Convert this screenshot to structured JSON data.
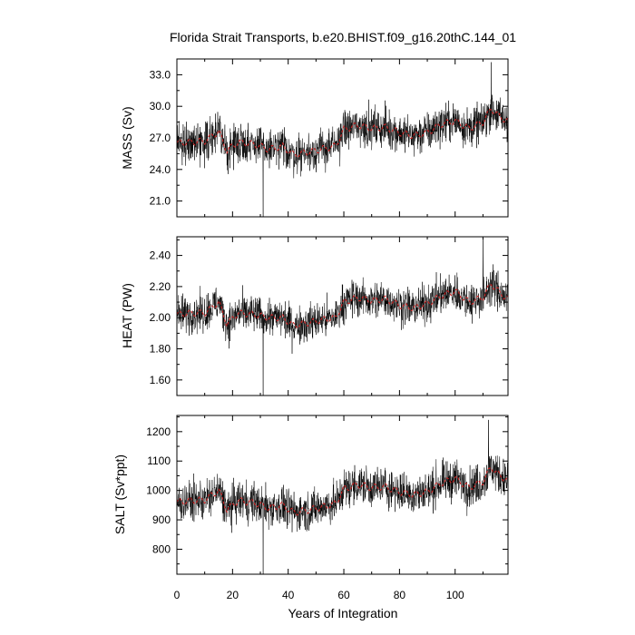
{
  "title": "Florida Strait Transports, b.e20.BHIST.f09_g16.20thC.144_01",
  "colors": {
    "monthly": "#000000",
    "smoothed": "#cc2222"
  },
  "chart_data": [
    {
      "type": "line",
      "ylabel": "MASS (Sv)",
      "xlim": [
        0,
        119
      ],
      "ylim": [
        19.5,
        34.5
      ],
      "yticks": [
        21.0,
        24.0,
        27.0,
        30.0,
        33.0
      ],
      "ytick_labels": [
        "21.0",
        "24.0",
        "27.0",
        "30.0",
        "33.0"
      ],
      "x_years": [
        0,
        5,
        10,
        15,
        18,
        22,
        28,
        33,
        38,
        42,
        48,
        53,
        57,
        60,
        65,
        70,
        75,
        80,
        85,
        90,
        95,
        100,
        105,
        110,
        113,
        116,
        119
      ],
      "smoothed": [
        26.5,
        26.6,
        26.7,
        27.6,
        25.8,
        26.6,
        26.4,
        25.9,
        26.2,
        25.4,
        25.7,
        26.0,
        26.2,
        27.8,
        28.2,
        27.9,
        28.0,
        27.5,
        27.2,
        27.5,
        28.3,
        28.6,
        27.9,
        28.5,
        29.8,
        29.0,
        28.6
      ],
      "noise_amplitude": 2.6,
      "min_point": {
        "x": 31,
        "y": 19.5
      },
      "max_point": {
        "x": 113,
        "y": 34.2
      }
    },
    {
      "type": "line",
      "ylabel": "HEAT (PW)",
      "xlim": [
        0,
        119
      ],
      "ylim": [
        1.5,
        2.52
      ],
      "yticks": [
        1.6,
        1.8,
        2.0,
        2.2,
        2.4
      ],
      "ytick_labels": [
        "1.60",
        "1.80",
        "2.00",
        "2.20",
        "2.40"
      ],
      "x_years": [
        0,
        5,
        10,
        15,
        18,
        22,
        28,
        33,
        38,
        42,
        48,
        53,
        57,
        60,
        65,
        70,
        75,
        80,
        85,
        90,
        95,
        100,
        105,
        110,
        113,
        116,
        119
      ],
      "smoothed": [
        2.02,
        2.03,
        2.03,
        2.1,
        1.96,
        2.03,
        2.02,
        2.0,
        2.0,
        1.95,
        1.97,
        1.99,
        2.0,
        2.1,
        2.13,
        2.11,
        2.12,
        2.08,
        2.06,
        2.09,
        2.14,
        2.17,
        2.1,
        2.13,
        2.22,
        2.16,
        2.12
      ],
      "noise_amplitude": 0.17,
      "min_point": {
        "x": 31,
        "y": 1.5
      },
      "max_point": {
        "x": 110,
        "y": 2.51
      }
    },
    {
      "type": "line",
      "ylabel": "SALT (Sv*ppt)",
      "xlim": [
        0,
        119
      ],
      "ylim": [
        715,
        1255
      ],
      "yticks": [
        800,
        900,
        1000,
        1100,
        1200
      ],
      "ytick_labels": [
        "800",
        "900",
        "1000",
        "1100",
        "1200"
      ],
      "x_years": [
        0,
        5,
        10,
        15,
        18,
        22,
        28,
        33,
        38,
        42,
        48,
        53,
        57,
        60,
        65,
        70,
        75,
        80,
        85,
        90,
        95,
        100,
        105,
        110,
        113,
        116,
        119
      ],
      "smoothed": [
        960,
        965,
        968,
        1000,
        935,
        965,
        958,
        940,
        950,
        925,
        935,
        945,
        955,
        1005,
        1020,
        1010,
        1012,
        995,
        985,
        995,
        1025,
        1040,
        1010,
        1030,
        1080,
        1050,
        1035
      ],
      "noise_amplitude": 95,
      "min_point": {
        "x": 31,
        "y": 715
      },
      "max_point": {
        "x": 112,
        "y": 1240
      }
    }
  ],
  "xaxis": {
    "label": "Years of Integration",
    "ticks": [
      0,
      20,
      40,
      60,
      80,
      100
    ],
    "tick_labels": [
      "0",
      "20",
      "40",
      "60",
      "80",
      "100"
    ]
  }
}
